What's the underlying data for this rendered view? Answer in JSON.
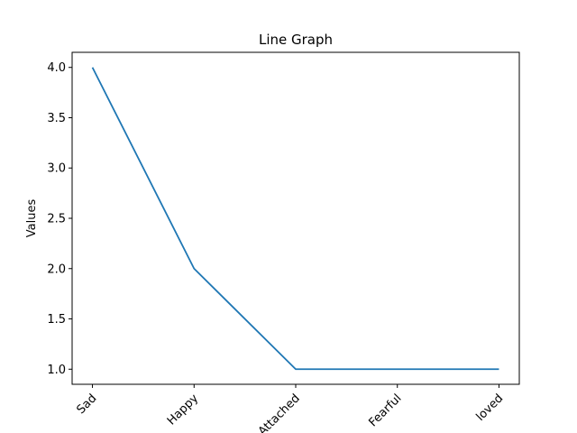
{
  "chart_data": {
    "type": "line",
    "title": "Line Graph",
    "xlabel": "",
    "ylabel": "Values",
    "categories": [
      "Sad",
      "Happy",
      "Attached",
      "Fearful",
      "loved"
    ],
    "series": [
      {
        "values": [
          4,
          2,
          1,
          1,
          1
        ],
        "color": "#1f77b4"
      }
    ],
    "yticks": [
      1.0,
      1.5,
      2.0,
      2.5,
      3.0,
      3.5,
      4.0
    ],
    "ytick_labels": [
      "1.0",
      "1.5",
      "2.0",
      "2.5",
      "3.0",
      "3.5",
      "4.0"
    ],
    "ylim": [
      0.85,
      4.15
    ],
    "grid": false,
    "x_tick_rotation": 45
  }
}
